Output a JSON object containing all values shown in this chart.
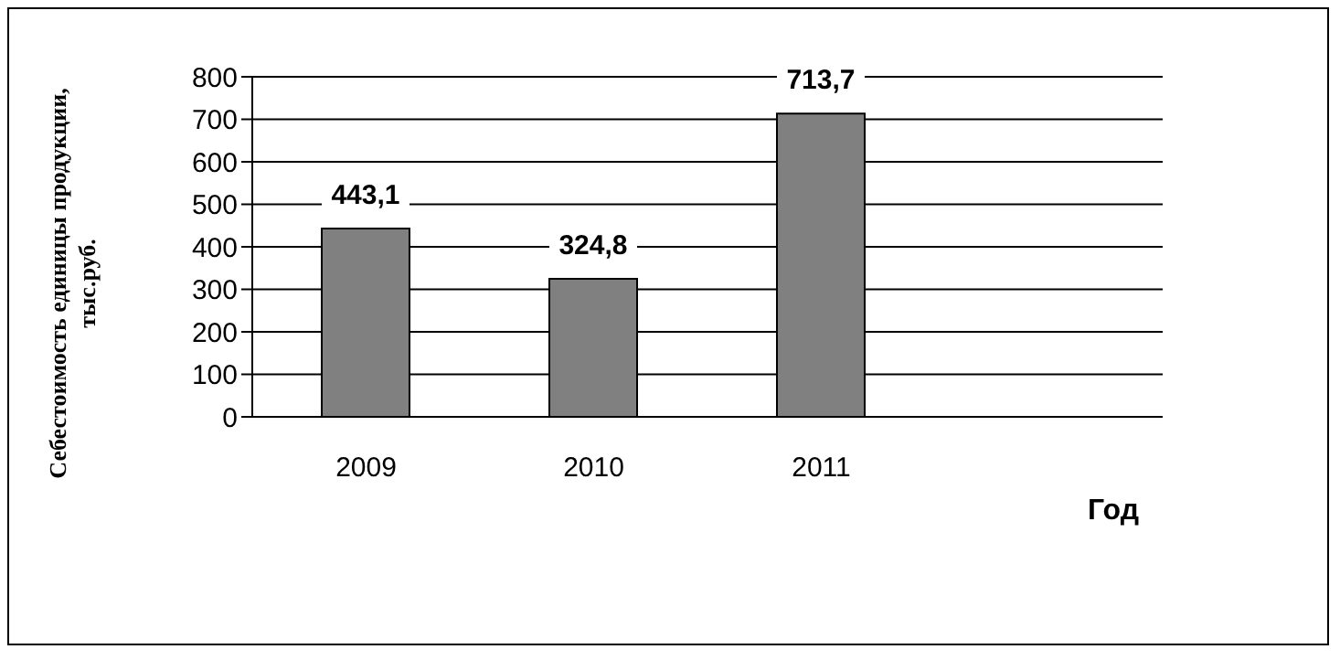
{
  "chart_data": {
    "type": "bar",
    "ylabel": "Себестоимость единицы продукции, тыс.руб.",
    "xlabel": "Год",
    "categories": [
      "2009",
      "2010",
      "2011",
      null
    ],
    "values": [
      443.1,
      324.8,
      713.7,
      null
    ],
    "value_labels": [
      "443,1",
      "324,8",
      "713,7",
      null
    ],
    "color": "#808080",
    "ylim": [
      0,
      800
    ],
    "yticks": [
      0,
      100,
      200,
      300,
      400,
      500,
      600,
      700,
      800
    ],
    "grid": "y"
  }
}
